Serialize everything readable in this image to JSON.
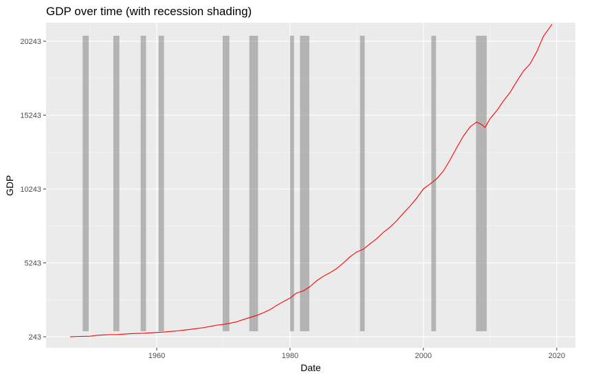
{
  "chart_data": {
    "type": "line",
    "title": "GDP over time (with recession shading)",
    "xlabel": "Date",
    "ylabel": "GDP",
    "xlim": [
      1943.4,
      2022.8
    ],
    "ylim": [
      -500,
      21500
    ],
    "x_ticks": [
      1960,
      1980,
      2000,
      2020
    ],
    "x_tick_labels": [
      "1960",
      "1980",
      "2000",
      "2020"
    ],
    "y_ticks": [
      243,
      5243,
      10243,
      15243,
      20243
    ],
    "y_tick_labels": [
      "243",
      "5243",
      "10243",
      "15243",
      "20243"
    ],
    "grid": true,
    "legend": "none",
    "colors": {
      "panel_background": "#ebebeb",
      "grid_major": "#ffffff",
      "grid_minor": "#f5f5f5",
      "line": "#ff0000",
      "recession_band": "#7f7f7f"
    },
    "recessions": [
      {
        "start": 1948.9,
        "end": 1949.8
      },
      {
        "start": 1953.5,
        "end": 1954.4
      },
      {
        "start": 1957.6,
        "end": 1958.4
      },
      {
        "start": 1960.3,
        "end": 1961.1
      },
      {
        "start": 1969.9,
        "end": 1970.9
      },
      {
        "start": 1973.9,
        "end": 1975.2
      },
      {
        "start": 1980.0,
        "end": 1980.6
      },
      {
        "start": 1981.5,
        "end": 1982.9
      },
      {
        "start": 1990.5,
        "end": 1991.2
      },
      {
        "start": 2001.2,
        "end": 2001.9
      },
      {
        "start": 2007.9,
        "end": 2009.5
      }
    ],
    "series": [
      {
        "x": [
          1947,
          1948,
          1949,
          1950,
          1951,
          1952,
          1953,
          1954,
          1955,
          1956,
          1957,
          1958,
          1959,
          1960,
          1961,
          1962,
          1963,
          1964,
          1965,
          1966,
          1967,
          1968,
          1969,
          1970,
          1971,
          1972,
          1973,
          1974,
          1975,
          1976,
          1977,
          1978,
          1979,
          1980,
          1981,
          1982,
          1983,
          1984,
          1985,
          1986,
          1987,
          1988,
          1989,
          1990,
          1991,
          1992,
          1993,
          1994,
          1995,
          1996,
          1997,
          1998,
          1999,
          2000,
          2001,
          2002,
          2003,
          2004,
          2005,
          2006,
          2007,
          2008,
          2008.75,
          2009.25,
          2010,
          2011,
          2012,
          2013,
          2014,
          2015,
          2016,
          2017,
          2018,
          2019.3
        ],
        "values": [
          243,
          262,
          270,
          280,
          340,
          370,
          390,
          390,
          420,
          450,
          470,
          480,
          510,
          540,
          560,
          600,
          640,
          690,
          740,
          800,
          860,
          940,
          1030,
          1080,
          1160,
          1260,
          1410,
          1550,
          1690,
          1870,
          2080,
          2370,
          2630,
          2860,
          3210,
          3350,
          3640,
          4040,
          4340,
          4580,
          4860,
          5240,
          5660,
          5980,
          6170,
          6540,
          6880,
          7310,
          7660,
          8100,
          8610,
          9090,
          9630,
          10250,
          10580,
          10940,
          11460,
          12210,
          13040,
          13820,
          14450,
          14780,
          14600,
          14400,
          15000,
          15540,
          16200,
          16780,
          17520,
          18220,
          18710,
          19520,
          20580,
          21400
        ]
      }
    ]
  }
}
